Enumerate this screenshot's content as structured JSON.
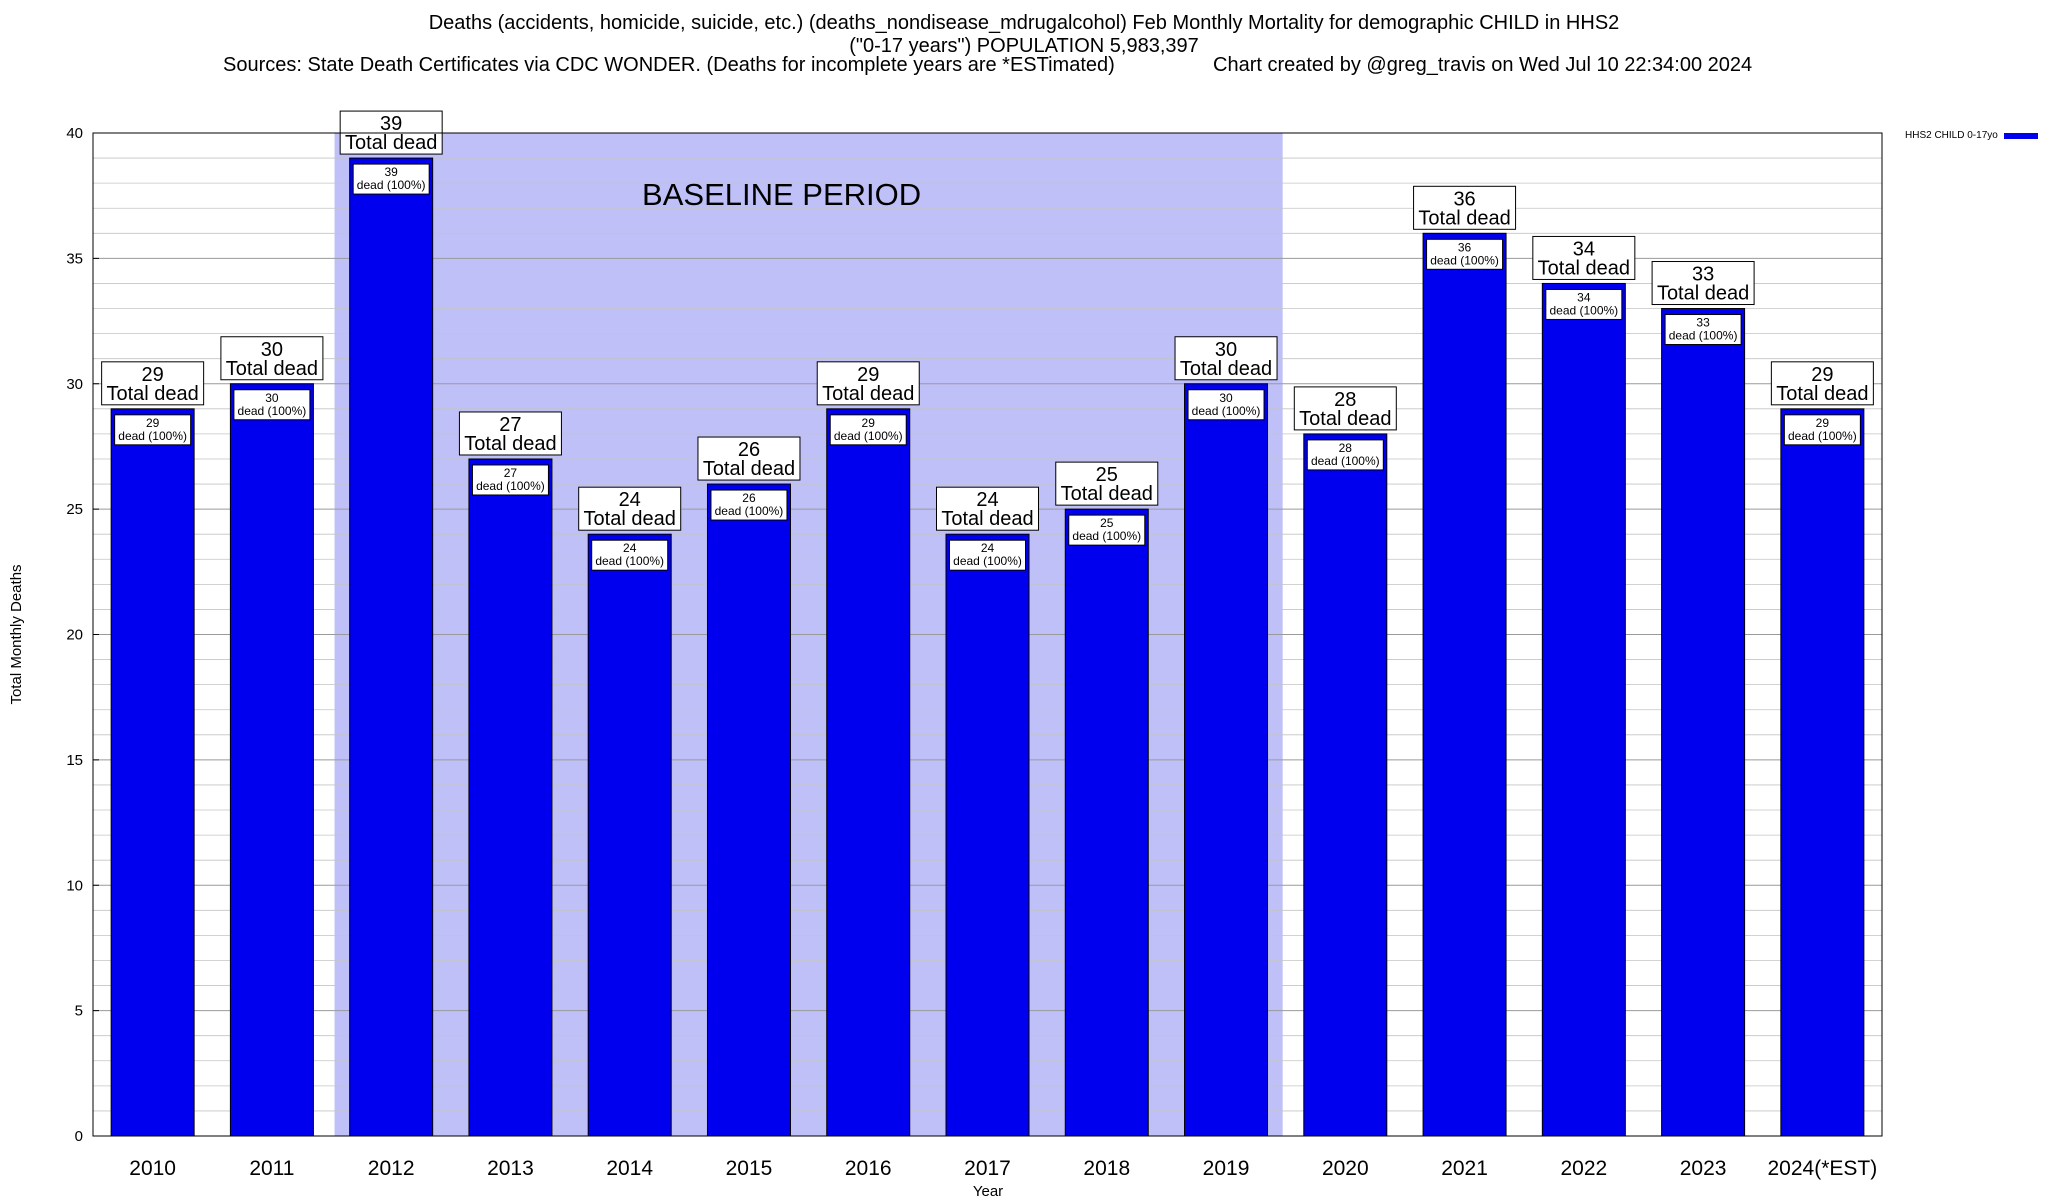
{
  "header": {
    "title_line1": "Deaths (accidents, homicide, suicide, etc.) (deaths_nondisease_mdrugalcohol) Feb Monthly Mortality for demographic CHILD in HHS2",
    "title_line2": "(\"0-17 years\") POPULATION 5,983,397",
    "sources": "Sources: State Death Certificates via CDC WONDER. (Deaths for incomplete years are *ESTimated)",
    "credit": "Chart created by @greg_travis on Wed Jul 10 22:34:00 2024"
  },
  "legend": {
    "label": "HHS2 CHILD 0-17yo",
    "color": "#0000ee"
  },
  "chart_data": {
    "type": "bar",
    "title": "Deaths (accidents, homicide, suicide, etc.) (deaths_nondisease_mdrugalcohol) Feb Monthly Mortality for demographic CHILD in HHS2 (\"0-17 years\") POPULATION 5,983,397",
    "xlabel": "Year",
    "ylabel": "Total Monthly Deaths",
    "ylim": [
      0,
      40
    ],
    "yticks": [
      0,
      5,
      10,
      15,
      20,
      25,
      30,
      35,
      40
    ],
    "grid": true,
    "legend_position": "top-right",
    "categories": [
      "2010",
      "2011",
      "2012",
      "2013",
      "2014",
      "2015",
      "2016",
      "2017",
      "2018",
      "2019",
      "2020",
      "2021",
      "2022",
      "2023",
      "2024(*EST)"
    ],
    "series": [
      {
        "name": "HHS2 CHILD 0-17yo",
        "color": "#0000ee",
        "values": [
          29,
          30,
          39,
          27,
          24,
          26,
          29,
          24,
          25,
          30,
          28,
          36,
          34,
          33,
          29
        ]
      }
    ],
    "bar_top_label": "Total dead",
    "bar_inner_label": "dead (100%)",
    "baseline": {
      "label": "BASELINE PERIOD",
      "start": "2012",
      "end": "2019",
      "color": "#bfc0f8"
    }
  }
}
